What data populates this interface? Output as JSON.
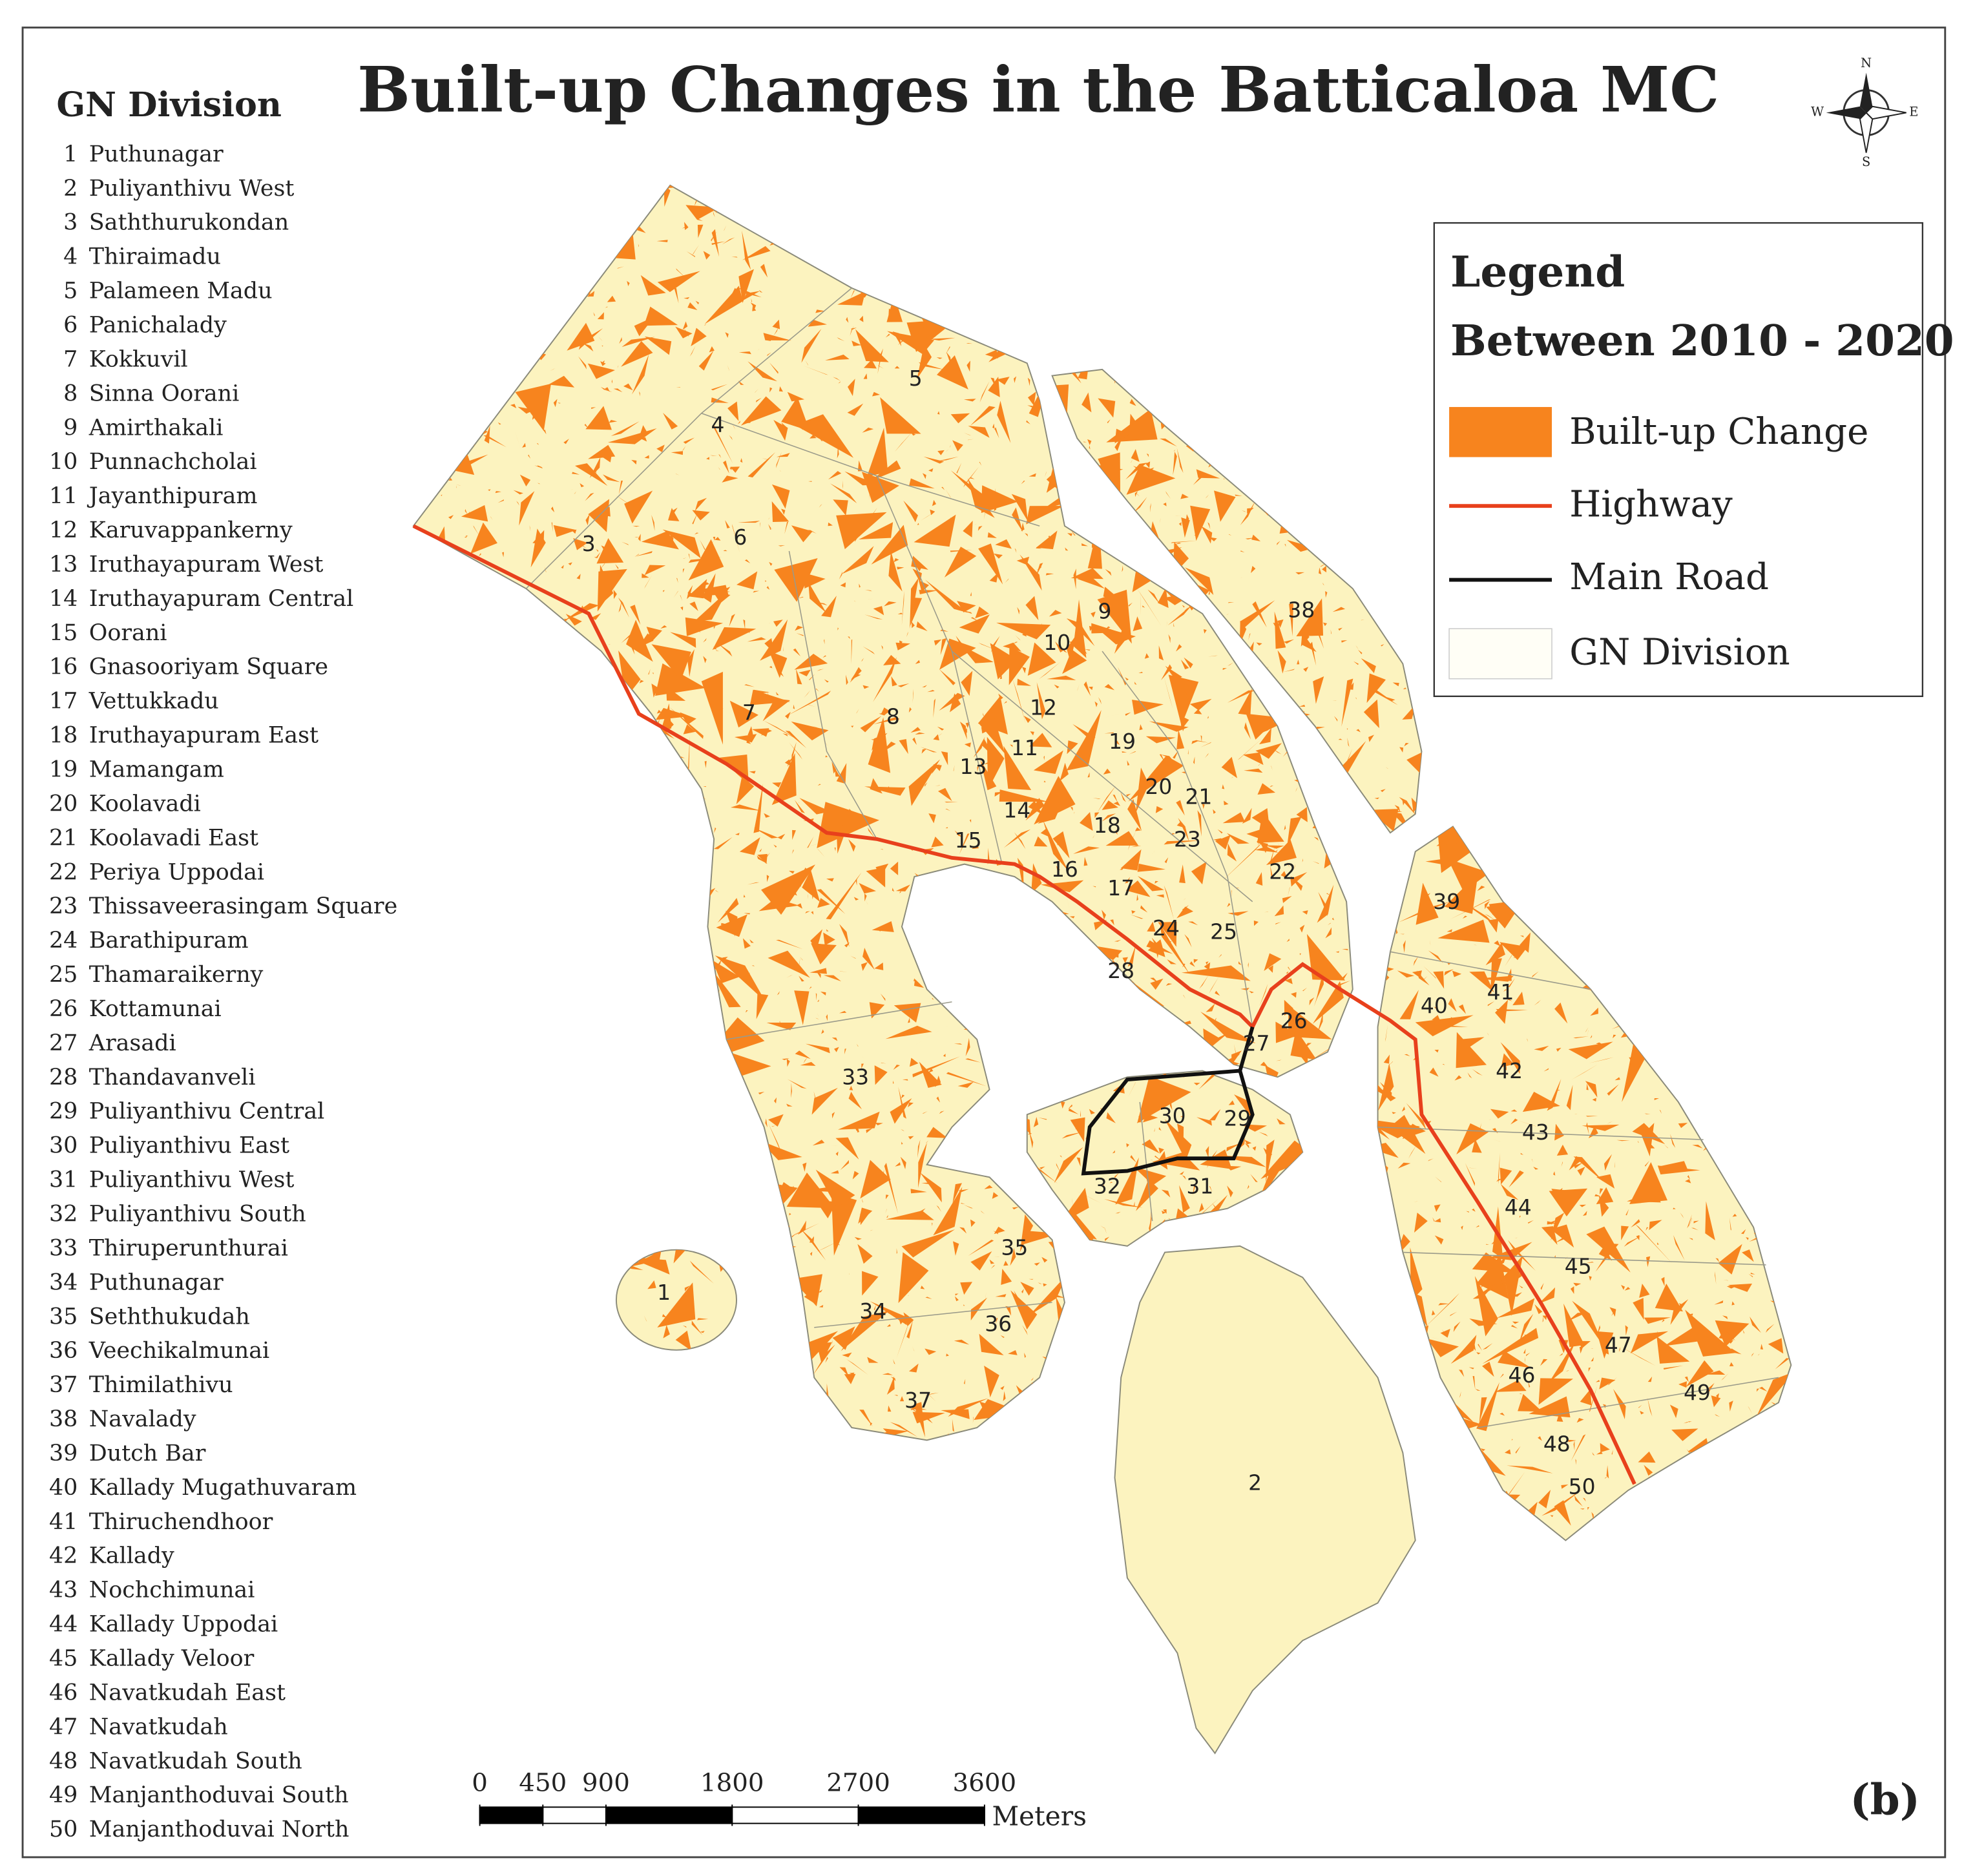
{
  "title": "Built-up Changes in the Batticaloa MC",
  "gn_division": {
    "title": "GN Division",
    "items": [
      {
        "number": 1,
        "name": "Puthunagar"
      },
      {
        "number": 2,
        "name": "Puliyanthivu West"
      },
      {
        "number": 3,
        "name": "Saththurukondan"
      },
      {
        "number": 4,
        "name": "Thiraimadu"
      },
      {
        "number": 5,
        "name": "Palameen Madu"
      },
      {
        "number": 6,
        "name": "Panichalady"
      },
      {
        "number": 7,
        "name": "Kokkuvil"
      },
      {
        "number": 8,
        "name": "Sinna Oorani"
      },
      {
        "number": 9,
        "name": "Amirthakali"
      },
      {
        "number": 10,
        "name": "Punnachcholai"
      },
      {
        "number": 11,
        "name": "Jayanthipuram"
      },
      {
        "number": 12,
        "name": "Karuvappankerny"
      },
      {
        "number": 13,
        "name": "Iruthayapuram West"
      },
      {
        "number": 14,
        "name": "Iruthayapuram Central"
      },
      {
        "number": 15,
        "name": "Oorani"
      },
      {
        "number": 16,
        "name": "Gnasooriyam Square"
      },
      {
        "number": 17,
        "name": "Vettukkadu"
      },
      {
        "number": 18,
        "name": "Iruthayapuram East"
      },
      {
        "number": 19,
        "name": "Mamangam"
      },
      {
        "number": 20,
        "name": "Koolavadi"
      },
      {
        "number": 21,
        "name": "Koolavadi East"
      },
      {
        "number": 22,
        "name": "Periya Uppodai"
      },
      {
        "number": 23,
        "name": "Thissaveerasingam Square"
      },
      {
        "number": 24,
        "name": "Barathipuram"
      },
      {
        "number": 25,
        "name": "Thamaraikerny"
      },
      {
        "number": 26,
        "name": "Kottamunai"
      },
      {
        "number": 27,
        "name": "Arasadi"
      },
      {
        "number": 28,
        "name": "Thandavanveli"
      },
      {
        "number": 29,
        "name": "Puliyanthivu Central"
      },
      {
        "number": 30,
        "name": "Puliyanthivu East"
      },
      {
        "number": 31,
        "name": "Puliyanthivu West"
      },
      {
        "number": 32,
        "name": "Puliyanthivu South"
      },
      {
        "number": 33,
        "name": "Thiruperunthurai"
      },
      {
        "number": 34,
        "name": "Puthunagar"
      },
      {
        "number": 35,
        "name": "Seththukudah"
      },
      {
        "number": 36,
        "name": "Veechikalmunai"
      },
      {
        "number": 37,
        "name": "Thimilathivu"
      },
      {
        "number": 38,
        "name": "Navalady"
      },
      {
        "number": 39,
        "name": "Dutch Bar"
      },
      {
        "number": 40,
        "name": "Kallady Mugathuvaram"
      },
      {
        "number": 41,
        "name": "Thiruchendhoor"
      },
      {
        "number": 42,
        "name": "Kallady"
      },
      {
        "number": 43,
        "name": "Nochchimunai"
      },
      {
        "number": 44,
        "name": "Kallady Uppodai"
      },
      {
        "number": 45,
        "name": "Kallady Veloor"
      },
      {
        "number": 46,
        "name": "Navatkudah East"
      },
      {
        "number": 47,
        "name": "Navatkudah"
      },
      {
        "number": 48,
        "name": "Navatkudah South"
      },
      {
        "number": 49,
        "name": "Manjanthoduvai South"
      },
      {
        "number": 50,
        "name": "Manjanthoduvai North"
      }
    ]
  },
  "legend": {
    "title": "Legend",
    "subtitle": "Between 2010 - 2020",
    "items": [
      "Built-up Change",
      "Highway",
      "Main Road",
      "GN Division"
    ]
  },
  "compass": {
    "n": "N",
    "e": "E",
    "s": "S",
    "w": "W"
  },
  "scale_bar": {
    "ticks": [
      0,
      450,
      900,
      1800,
      2700,
      3600
    ],
    "unit": "Meters"
  },
  "panel_label": "(b)"
}
